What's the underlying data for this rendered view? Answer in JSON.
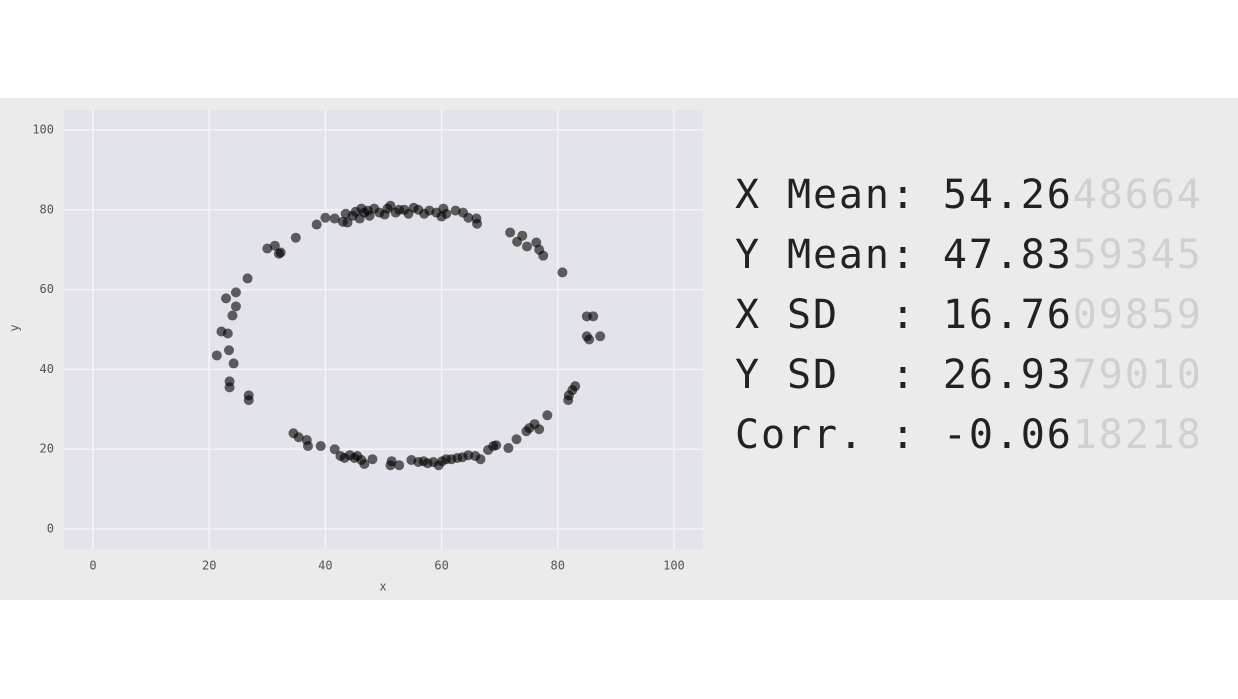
{
  "chart_data": {
    "type": "scatter",
    "x_label": "x",
    "y_label": "y",
    "xlim": [
      -5,
      105
    ],
    "ylim": [
      -5,
      105
    ],
    "xticks": [
      0,
      20,
      40,
      60,
      80,
      100
    ],
    "yticks": [
      0,
      20,
      40,
      60,
      80,
      100
    ],
    "grid": true,
    "color": "#000000",
    "x": [
      40.0,
      41.6,
      43.0,
      43.8,
      44.7,
      45.2,
      46.2,
      46.7,
      47.3,
      47.6,
      48.4,
      49.3,
      50.2,
      50.7,
      51.2,
      52.1,
      52.7,
      53.6,
      54.3,
      55.2,
      56.0,
      57.0,
      57.9,
      59.1,
      60.0,
      60.3,
      60.8,
      62.4,
      63.7,
      64.6,
      66.0,
      66.1,
      38.5,
      34.9,
      31.3,
      30.0,
      32.3,
      26.6,
      24.6,
      22.9,
      24.6,
      24.0,
      22.1,
      23.2,
      21.3,
      23.4,
      24.2,
      23.5,
      23.5,
      26.8,
      26.8,
      34.5,
      35.4,
      36.8,
      37.0,
      39.2,
      41.6,
      42.6,
      43.3,
      44.2,
      45.0,
      45.5,
      46.2,
      46.7,
      48.1,
      51.2,
      51.4,
      52.7,
      54.8,
      56.0,
      56.9,
      57.6,
      58.6,
      59.5,
      60.1,
      60.8,
      61.7,
      62.7,
      63.6,
      64.6,
      65.8,
      66.7,
      68.0,
      68.9,
      69.4,
      71.5,
      72.9,
      74.6,
      75.1,
      76.0,
      76.8,
      78.2,
      81.8,
      82.5,
      83.0,
      81.9,
      85.0,
      86.1,
      85.0,
      85.4,
      87.3,
      80.8,
      77.5,
      76.8,
      76.3,
      74.7,
      73.9,
      73.0,
      71.8,
      45.9,
      43.5,
      32.0
    ],
    "values": [
      78.0,
      77.8,
      77.0,
      76.8,
      78.5,
      79.5,
      80.3,
      79.3,
      79.8,
      78.5,
      80.3,
      79.3,
      78.8,
      80.3,
      81.0,
      79.3,
      80.0,
      80.0,
      79.0,
      80.5,
      80.0,
      79.0,
      79.8,
      79.3,
      78.3,
      80.3,
      79.0,
      79.8,
      79.3,
      78.0,
      77.8,
      76.5,
      76.3,
      73.0,
      71.0,
      70.3,
      69.3,
      62.8,
      59.3,
      57.8,
      55.8,
      53.5,
      49.5,
      49.0,
      43.5,
      44.8,
      41.5,
      37.0,
      35.5,
      33.5,
      32.3,
      24.0,
      23.0,
      22.3,
      20.8,
      20.8,
      20.0,
      18.3,
      17.8,
      18.5,
      17.8,
      18.3,
      17.3,
      16.3,
      17.5,
      16.0,
      17.0,
      16.0,
      17.3,
      16.8,
      17.0,
      16.5,
      16.8,
      16.0,
      17.0,
      17.5,
      17.5,
      17.8,
      18.0,
      18.5,
      18.3,
      17.5,
      19.8,
      20.8,
      21.0,
      20.3,
      22.5,
      24.5,
      25.3,
      26.3,
      25.0,
      28.5,
      32.3,
      34.8,
      35.8,
      33.5,
      53.3,
      53.3,
      48.3,
      47.5,
      48.3,
      64.3,
      68.5,
      70.0,
      71.8,
      70.8,
      73.5,
      72.0,
      74.3,
      77.8,
      79.0,
      69.0
    ]
  },
  "stats_panel": {
    "rows": [
      {
        "label": "X Mean:",
        "shown": "54.26",
        "trailing": "48664"
      },
      {
        "label": "Y Mean:",
        "shown": "47.83",
        "trailing": "59345"
      },
      {
        "label": "X SD  :",
        "shown": "16.76",
        "trailing": "09859"
      },
      {
        "label": "Y SD  :",
        "shown": "26.93",
        "trailing": "79010"
      },
      {
        "label": "Corr. :",
        "shown": "-0.06",
        "trailing": "18218"
      }
    ]
  }
}
